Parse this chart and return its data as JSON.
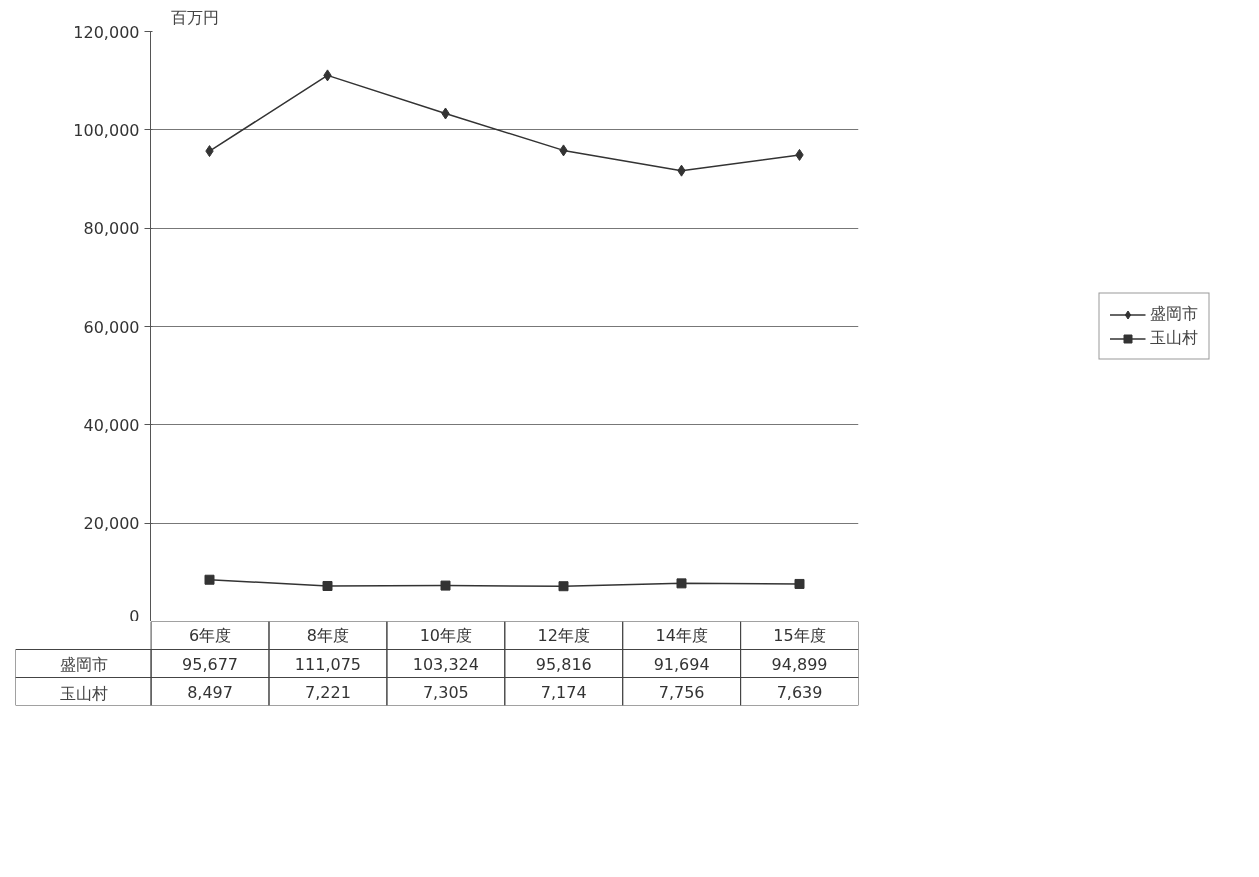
{
  "chart_data": {
    "type": "line",
    "ylabel": "百万円",
    "categories": [
      "6年度",
      "8年度",
      "10年度",
      "12年度",
      "14年度",
      "15年度"
    ],
    "series": [
      {
        "name": "盛岡市",
        "color": "#333333",
        "marker": "diamond",
        "values": [
          95677,
          111075,
          103324,
          95816,
          91694,
          94899
        ],
        "value_labels": [
          "95,677",
          "111,075",
          "103,324",
          "95,816",
          "91,694",
          "94,899"
        ]
      },
      {
        "name": "玉山村",
        "color": "#333333",
        "marker": "square",
        "values": [
          8497,
          7221,
          7305,
          7174,
          7756,
          7639
        ],
        "value_labels": [
          "8,497",
          "7,221",
          "7,305",
          "7,174",
          "7,756",
          "7,639"
        ]
      }
    ],
    "ylim": [
      0,
      120000
    ],
    "yticks": [
      0,
      {
        "value": 20000,
        "label": "20,000"
      },
      {
        "value": 40000,
        "label": "40,000"
      },
      {
        "value": 60000,
        "label": "60,000"
      },
      {
        "value": 80000,
        "label": "80,000"
      },
      {
        "value": 100000,
        "label": "100,000"
      },
      {
        "value": 120000,
        "label": "120,000"
      }
    ],
    "grid": "y",
    "legend": "right",
    "line_style": "solid"
  }
}
